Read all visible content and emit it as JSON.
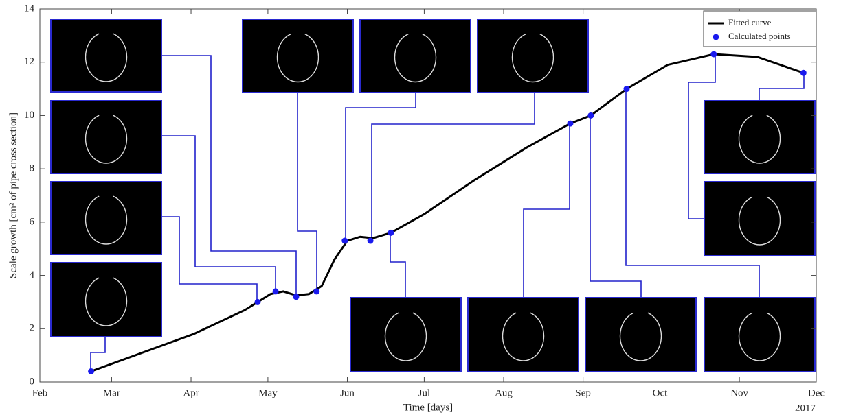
{
  "chart_data": {
    "type": "line",
    "x_label": "Time [days]",
    "y_label": "Scale growth [cm² of pipe cross section]",
    "x_year_label": "2017",
    "xlim": [
      0,
      303
    ],
    "xticks": [
      {
        "value": 0,
        "label": "Feb"
      },
      {
        "value": 28,
        "label": "Mar"
      },
      {
        "value": 59,
        "label": "Apr"
      },
      {
        "value": 89,
        "label": "May"
      },
      {
        "value": 120,
        "label": "Jun"
      },
      {
        "value": 150,
        "label": "Jul"
      },
      {
        "value": 181,
        "label": "Aug"
      },
      {
        "value": 212,
        "label": "Sep"
      },
      {
        "value": 242,
        "label": "Oct"
      },
      {
        "value": 273,
        "label": "Nov"
      },
      {
        "value": 303,
        "label": "Dec"
      }
    ],
    "ylim": [
      0,
      14
    ],
    "yticks": [
      0,
      2,
      4,
      6,
      8,
      10,
      12,
      14
    ],
    "legend": "top-right",
    "series": [
      {
        "name": "Fitted curve",
        "color": "#000000",
        "style": "line",
        "x": [
          20,
          40,
          60,
          80,
          90,
          95,
          100,
          105,
          110,
          115,
          120,
          125,
          130,
          137,
          150,
          170,
          190,
          207,
          215,
          229,
          245,
          263,
          280,
          298
        ],
        "values": [
          0.4,
          1.1,
          1.8,
          2.7,
          3.3,
          3.4,
          3.25,
          3.3,
          3.6,
          4.6,
          5.3,
          5.45,
          5.4,
          5.6,
          6.3,
          7.6,
          8.8,
          9.7,
          10.0,
          11.0,
          11.9,
          12.3,
          12.2,
          11.6
        ]
      },
      {
        "name": "Calculated points",
        "color": "#1a1aee",
        "style": "points",
        "x": [
          20,
          85,
          92,
          100,
          108,
          119,
          129,
          137,
          207,
          215,
          229,
          263,
          298
        ],
        "values": [
          0.4,
          3.0,
          3.4,
          3.2,
          3.4,
          5.3,
          5.3,
          5.6,
          9.7,
          10.0,
          11.0,
          12.3,
          11.6
        ]
      }
    ]
  }
}
